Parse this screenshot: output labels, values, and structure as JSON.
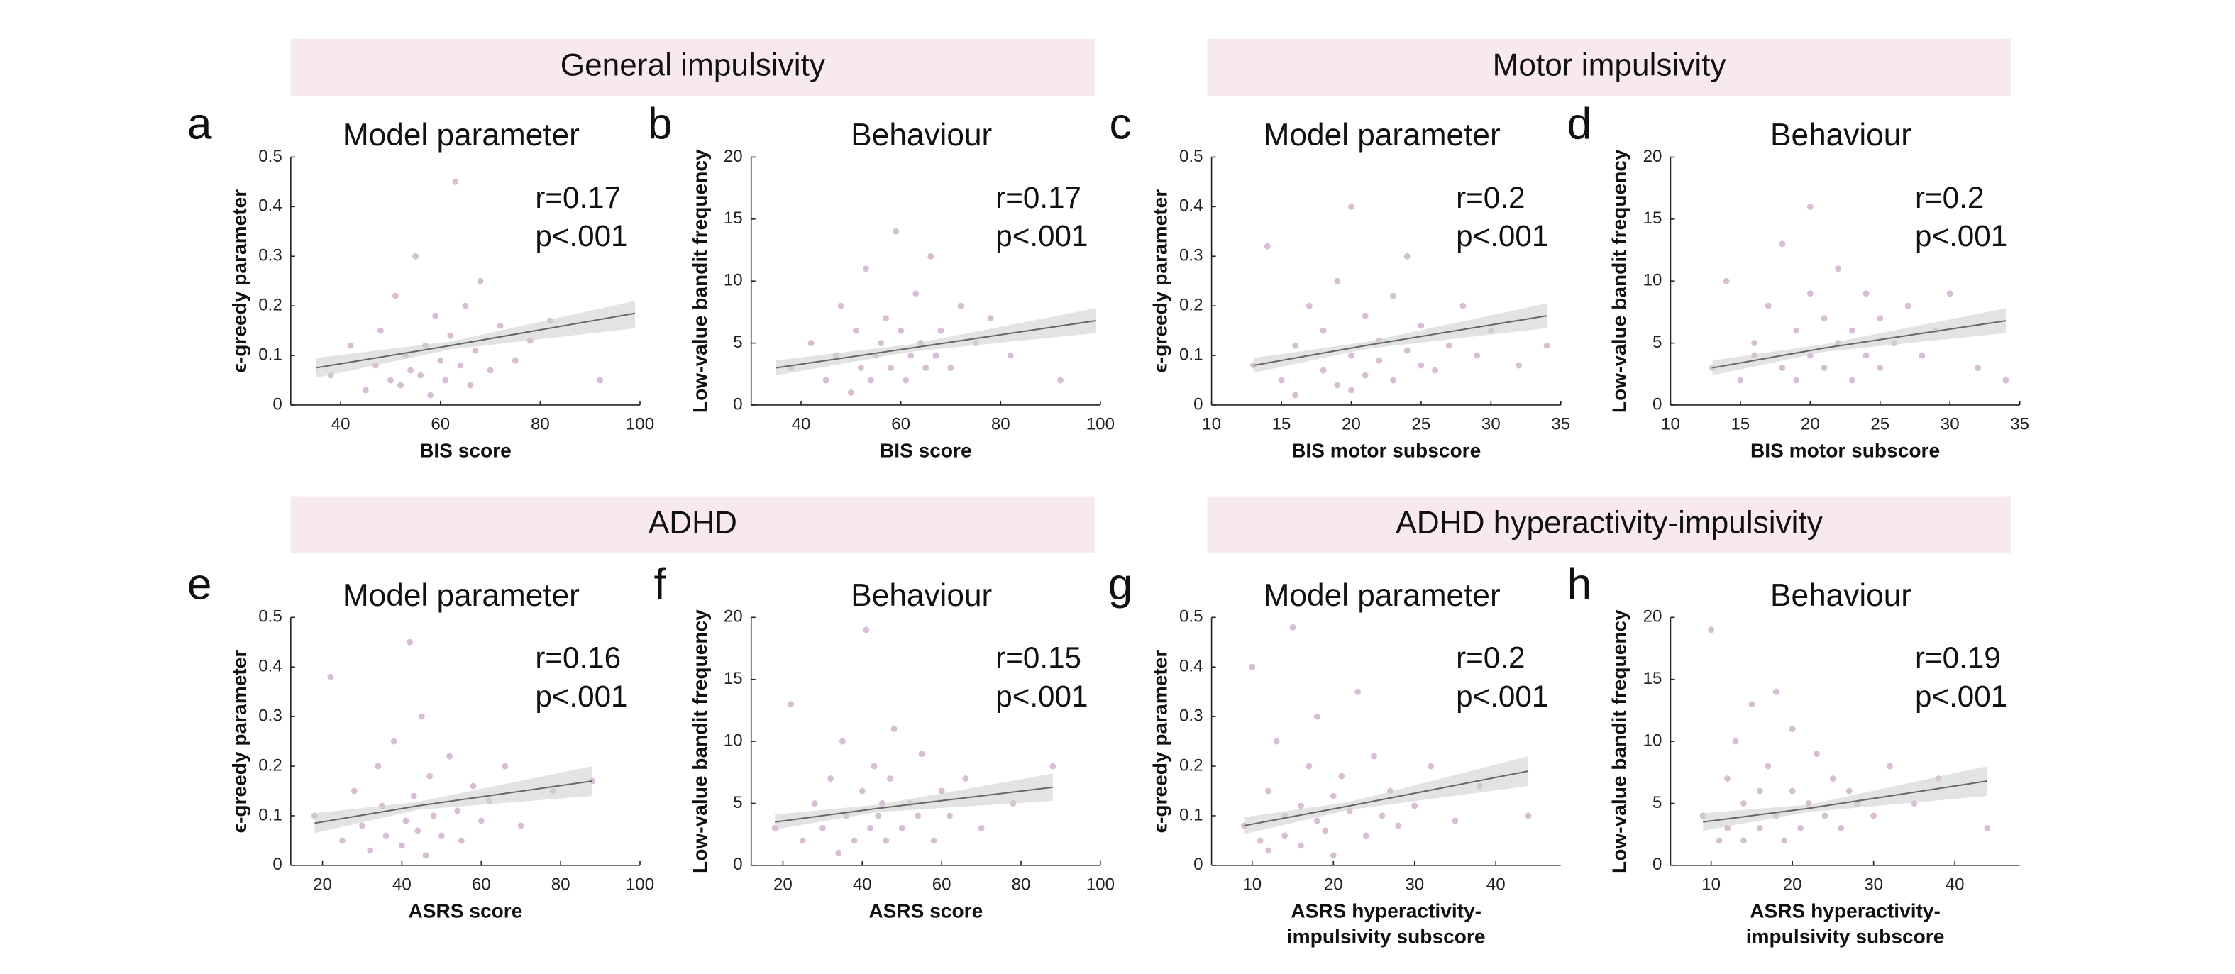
{
  "group_headers": [
    "General impulsivity",
    "Motor impulsivity",
    "ADHD",
    "ADHD hyperactivity-impulsivity"
  ],
  "chart_data": [
    {
      "type": "scatter",
      "panel": "a",
      "title": "Model parameter",
      "xlabel": "BIS score",
      "ylabel": "ϵ-greedy parameter",
      "annotations": [
        "r=0.17",
        "p<.001"
      ],
      "xlim": [
        30,
        100
      ],
      "xticks": [
        40,
        60,
        80,
        100
      ],
      "ylim": [
        0,
        0.5
      ],
      "yticks": [
        0,
        0.1,
        0.2,
        0.3,
        0.4,
        0.5
      ],
      "color": "#8e4585",
      "fit_color": "#666666",
      "ci_color": "#d0d0d0",
      "x": [
        38,
        42,
        45,
        47,
        48,
        50,
        51,
        52,
        53,
        54,
        55,
        56,
        57,
        58,
        59,
        60,
        61,
        62,
        63,
        64,
        65,
        66,
        67,
        68,
        70,
        72,
        75,
        78,
        82,
        92
      ],
      "values": [
        0.06,
        0.12,
        0.03,
        0.08,
        0.15,
        0.05,
        0.22,
        0.04,
        0.1,
        0.07,
        0.3,
        0.06,
        0.12,
        0.02,
        0.18,
        0.09,
        0.05,
        0.14,
        0.45,
        0.08,
        0.2,
        0.04,
        0.11,
        0.25,
        0.07,
        0.16,
        0.09,
        0.13,
        0.17,
        0.05
      ],
      "fit": {
        "x": [
          35,
          62,
          99
        ],
        "values": [
          0.075,
          0.12,
          0.185
        ],
        "ci_lower": [
          0.055,
          0.112,
          0.155
        ],
        "ci_upper": [
          0.095,
          0.128,
          0.21
        ]
      }
    },
    {
      "type": "scatter",
      "panel": "b",
      "title": "Behaviour",
      "xlabel": "BIS score",
      "ylabel": "Low-value bandit frequency",
      "annotations": [
        "r=0.17",
        "p<.001"
      ],
      "xlim": [
        30,
        100
      ],
      "xticks": [
        40,
        60,
        80,
        100
      ],
      "ylim": [
        0,
        20
      ],
      "yticks": [
        0,
        5,
        10,
        15,
        20
      ],
      "color": "#8e4585",
      "fit_color": "#666666",
      "ci_color": "#d0d0d0",
      "x": [
        38,
        42,
        45,
        47,
        48,
        50,
        51,
        52,
        53,
        54,
        55,
        56,
        57,
        58,
        59,
        60,
        61,
        62,
        63,
        64,
        65,
        66,
        67,
        68,
        70,
        72,
        75,
        78,
        82,
        92
      ],
      "values": [
        3,
        5,
        2,
        4,
        8,
        1,
        6,
        3,
        11,
        2,
        4,
        5,
        7,
        3,
        14,
        6,
        2,
        4,
        9,
        5,
        3,
        12,
        4,
        6,
        3,
        8,
        5,
        7,
        4,
        2
      ],
      "fit": {
        "x": [
          35,
          62,
          99
        ],
        "values": [
          3,
          4.6,
          6.8
        ],
        "ci_lower": [
          2.4,
          4.3,
          5.8
        ],
        "ci_upper": [
          3.6,
          4.9,
          7.8
        ]
      }
    },
    {
      "type": "scatter",
      "panel": "c",
      "title": "Model parameter",
      "xlabel": "BIS motor subscore",
      "ylabel": "ϵ-greedy parameter",
      "annotations": [
        "r=0.2",
        "p<.001"
      ],
      "xlim": [
        10,
        35
      ],
      "xticks": [
        10,
        15,
        20,
        25,
        30,
        35
      ],
      "ylim": [
        0,
        0.5
      ],
      "yticks": [
        0,
        0.1,
        0.2,
        0.3,
        0.4,
        0.5
      ],
      "color": "#8e4585",
      "fit_color": "#666666",
      "ci_color": "#d0d0d0",
      "x": [
        13,
        14,
        15,
        16,
        16,
        17,
        18,
        18,
        19,
        19,
        20,
        20,
        20,
        21,
        21,
        22,
        22,
        23,
        23,
        24,
        24,
        25,
        25,
        26,
        27,
        28,
        29,
        30,
        32,
        34
      ],
      "values": [
        0.08,
        0.32,
        0.05,
        0.12,
        0.02,
        0.2,
        0.07,
        0.15,
        0.04,
        0.25,
        0.1,
        0.03,
        0.4,
        0.06,
        0.18,
        0.09,
        0.13,
        0.05,
        0.22,
        0.11,
        0.3,
        0.08,
        0.16,
        0.07,
        0.12,
        0.2,
        0.1,
        0.15,
        0.08,
        0.12
      ],
      "fit": {
        "x": [
          13,
          21,
          34
        ],
        "values": [
          0.08,
          0.12,
          0.18
        ],
        "ci_lower": [
          0.065,
          0.113,
          0.155
        ],
        "ci_upper": [
          0.095,
          0.127,
          0.205
        ]
      }
    },
    {
      "type": "scatter",
      "panel": "d",
      "title": "Behaviour",
      "xlabel": "BIS motor subscore",
      "ylabel": "Low-value bandit frequency",
      "annotations": [
        "r=0.2",
        "p<.001"
      ],
      "xlim": [
        10,
        35
      ],
      "xticks": [
        10,
        15,
        20,
        25,
        30,
        35
      ],
      "ylim": [
        0,
        20
      ],
      "yticks": [
        0,
        5,
        10,
        15,
        20
      ],
      "color": "#8e4585",
      "fit_color": "#666666",
      "ci_color": "#d0d0d0",
      "x": [
        13,
        14,
        15,
        16,
        16,
        17,
        18,
        18,
        19,
        19,
        20,
        20,
        20,
        21,
        21,
        22,
        22,
        23,
        23,
        24,
        24,
        25,
        25,
        26,
        27,
        28,
        29,
        30,
        32,
        34
      ],
      "values": [
        3,
        10,
        2,
        5,
        4,
        8,
        3,
        13,
        2,
        6,
        4,
        9,
        16,
        3,
        7,
        5,
        11,
        2,
        6,
        4,
        9,
        3,
        7,
        5,
        8,
        4,
        6,
        9,
        3,
        2
      ],
      "fit": {
        "x": [
          13,
          21,
          34
        ],
        "values": [
          3,
          4.6,
          6.8
        ],
        "ci_lower": [
          2.4,
          4.3,
          5.8
        ],
        "ci_upper": [
          3.6,
          4.9,
          7.8
        ]
      }
    },
    {
      "type": "scatter",
      "panel": "e",
      "title": "Model parameter",
      "xlabel": "ASRS score",
      "ylabel": "ϵ-greedy parameter",
      "annotations": [
        "r=0.16",
        "p<.001"
      ],
      "xlim": [
        12,
        100
      ],
      "xticks": [
        20,
        40,
        60,
        80,
        100
      ],
      "ylim": [
        0,
        0.5
      ],
      "yticks": [
        0,
        0.1,
        0.2,
        0.3,
        0.4,
        0.5
      ],
      "color": "#8e4585",
      "fit_color": "#666666",
      "ci_color": "#d0d0d0",
      "x": [
        18,
        22,
        25,
        28,
        30,
        32,
        34,
        35,
        36,
        38,
        40,
        41,
        42,
        43,
        44,
        45,
        46,
        47,
        48,
        50,
        52,
        54,
        55,
        58,
        60,
        62,
        66,
        70,
        78,
        88
      ],
      "values": [
        0.1,
        0.38,
        0.05,
        0.15,
        0.08,
        0.03,
        0.2,
        0.12,
        0.06,
        0.25,
        0.04,
        0.09,
        0.45,
        0.14,
        0.07,
        0.3,
        0.02,
        0.18,
        0.1,
        0.06,
        0.22,
        0.11,
        0.05,
        0.16,
        0.09,
        0.13,
        0.2,
        0.08,
        0.15,
        0.17
      ],
      "fit": {
        "x": [
          18,
          44,
          88
        ],
        "values": [
          0.085,
          0.12,
          0.17
        ],
        "ci_lower": [
          0.065,
          0.112,
          0.14
        ],
        "ci_upper": [
          0.105,
          0.128,
          0.2
        ]
      }
    },
    {
      "type": "scatter",
      "panel": "f",
      "title": "Behaviour",
      "xlabel": "ASRS score",
      "ylabel": "Low-value bandit frequency",
      "annotations": [
        "r=0.15",
        "p<.001"
      ],
      "xlim": [
        12,
        100
      ],
      "xticks": [
        20,
        40,
        60,
        80,
        100
      ],
      "ylim": [
        0,
        20
      ],
      "yticks": [
        0,
        5,
        10,
        15,
        20
      ],
      "color": "#8e4585",
      "fit_color": "#666666",
      "ci_color": "#d0d0d0",
      "x": [
        18,
        22,
        25,
        28,
        30,
        32,
        34,
        35,
        36,
        38,
        40,
        41,
        42,
        43,
        44,
        45,
        46,
        47,
        48,
        50,
        52,
        54,
        55,
        58,
        60,
        62,
        66,
        70,
        78,
        88
      ],
      "values": [
        3,
        13,
        2,
        5,
        3,
        7,
        1,
        10,
        4,
        2,
        6,
        19,
        3,
        8,
        4,
        5,
        2,
        7,
        11,
        3,
        5,
        4,
        9,
        2,
        6,
        4,
        7,
        3,
        5,
        8
      ],
      "fit": {
        "x": [
          18,
          44,
          88
        ],
        "values": [
          3.5,
          4.6,
          6.3
        ],
        "ci_lower": [
          2.9,
          4.3,
          5.2
        ],
        "ci_upper": [
          4.1,
          4.9,
          7.4
        ]
      }
    },
    {
      "type": "scatter",
      "panel": "g",
      "title": "Model parameter",
      "xlabel": [
        "ASRS hyperactivity-",
        "impulsivity subscore"
      ],
      "ylabel": "ϵ-greedy parameter",
      "annotations": [
        "r=0.2",
        "p<.001"
      ],
      "xlim": [
        5,
        48
      ],
      "xticks": [
        10,
        20,
        30,
        40
      ],
      "ylim": [
        0,
        0.5
      ],
      "yticks": [
        0,
        0.1,
        0.2,
        0.3,
        0.4,
        0.5
      ],
      "color": "#8e4585",
      "fit_color": "#666666",
      "ci_color": "#d0d0d0",
      "x": [
        9,
        10,
        11,
        12,
        12,
        13,
        14,
        14,
        15,
        16,
        16,
        17,
        18,
        18,
        19,
        20,
        20,
        21,
        22,
        23,
        24,
        25,
        26,
        27,
        28,
        30,
        32,
        35,
        38,
        44
      ],
      "values": [
        0.08,
        0.4,
        0.05,
        0.15,
        0.03,
        0.25,
        0.1,
        0.06,
        0.48,
        0.12,
        0.04,
        0.2,
        0.09,
        0.3,
        0.07,
        0.14,
        0.02,
        0.18,
        0.11,
        0.35,
        0.06,
        0.22,
        0.1,
        0.15,
        0.08,
        0.12,
        0.2,
        0.09,
        0.16,
        0.1
      ],
      "fit": {
        "x": [
          9,
          22,
          44
        ],
        "values": [
          0.08,
          0.12,
          0.19
        ],
        "ci_lower": [
          0.063,
          0.112,
          0.16
        ],
        "ci_upper": [
          0.097,
          0.128,
          0.22
        ]
      }
    },
    {
      "type": "scatter",
      "panel": "h",
      "title": "Behaviour",
      "xlabel": [
        "ASRS hyperactivity-",
        "impulsivity subscore"
      ],
      "ylabel": "Low-value bandit frequency",
      "annotations": [
        "r=0.19",
        "p<.001"
      ],
      "xlim": [
        5,
        48
      ],
      "xticks": [
        10,
        20,
        30,
        40
      ],
      "ylim": [
        0,
        20
      ],
      "yticks": [
        0,
        5,
        10,
        15,
        20
      ],
      "color": "#8e4585",
      "fit_color": "#666666",
      "ci_color": "#d0d0d0",
      "x": [
        9,
        10,
        11,
        12,
        12,
        13,
        14,
        14,
        15,
        16,
        16,
        17,
        18,
        18,
        19,
        20,
        20,
        21,
        22,
        23,
        24,
        25,
        26,
        27,
        28,
        30,
        32,
        35,
        38,
        44
      ],
      "values": [
        4,
        19,
        2,
        7,
        3,
        10,
        5,
        2,
        13,
        6,
        3,
        8,
        4,
        14,
        2,
        6,
        11,
        3,
        5,
        9,
        4,
        7,
        3,
        6,
        5,
        4,
        8,
        5,
        7,
        3
      ],
      "fit": {
        "x": [
          9,
          22,
          44
        ],
        "values": [
          3.5,
          4.6,
          6.8
        ],
        "ci_lower": [
          2.8,
          4.3,
          5.6
        ],
        "ci_upper": [
          4.2,
          4.9,
          8
        ]
      }
    }
  ]
}
